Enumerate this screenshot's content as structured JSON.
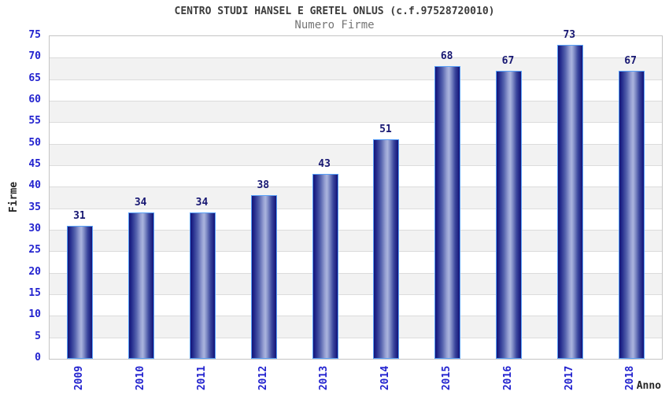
{
  "chart_data": {
    "type": "bar",
    "title": "CENTRO STUDI HANSEL E GRETEL ONLUS (c.f.97528720010)",
    "subtitle": "Numero Firme",
    "xlabel": "Anno",
    "ylabel": "Firme",
    "categories": [
      "2009",
      "2010",
      "2011",
      "2012",
      "2013",
      "2014",
      "2015",
      "2016",
      "2017",
      "2018"
    ],
    "values": [
      31,
      34,
      34,
      38,
      43,
      51,
      68,
      67,
      73,
      67
    ],
    "ylim": [
      0,
      75
    ],
    "ytick_step": 5,
    "grid": true,
    "legend_position": "none",
    "band_pattern": "alternating gray stripes every 5 units starting at 5-10",
    "colors": {
      "tick_label": "#2323cf",
      "value_label": "#171772",
      "title": "#3c3c3c",
      "subtitle": "#757575",
      "axis_title": "#262626",
      "grid_line": "#dcdcdc",
      "plot_border": "#c4c4c4",
      "band_fill": "#f2f2f2",
      "bar_outline": "#58a0f8",
      "bar_dark": "#131378",
      "bar_light": "#aab4de",
      "background": "#ffffff"
    }
  }
}
